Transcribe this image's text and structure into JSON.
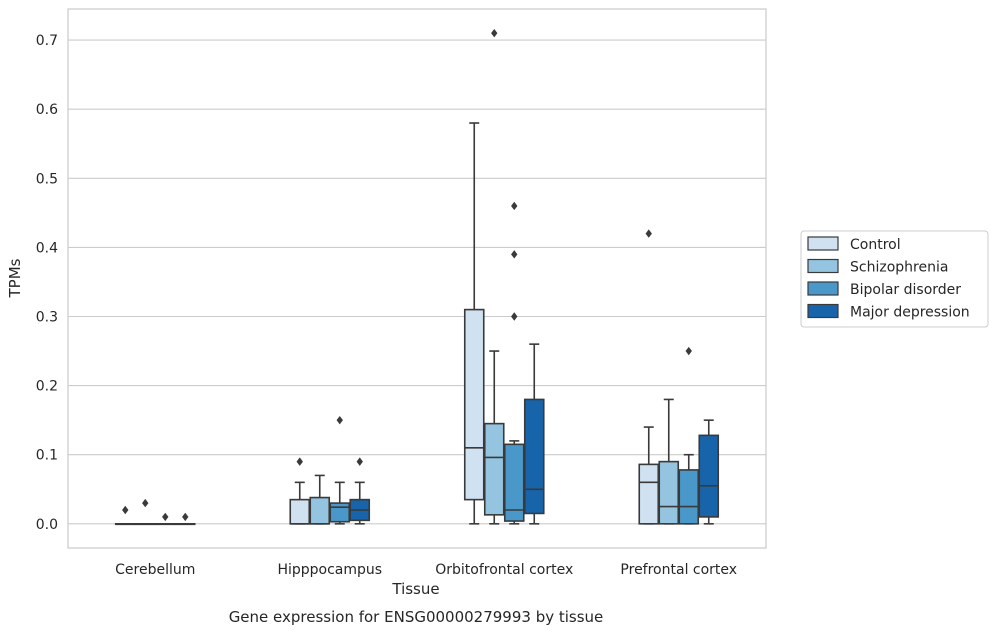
{
  "caption": "Gene expression for ENSG00000279993 by tissue",
  "chart_data": {
    "type": "boxplot",
    "title": "",
    "xlabel": "Tissue",
    "ylabel": "TPMs",
    "ylim": [
      -0.035,
      0.745
    ],
    "yticks": [
      0.0,
      0.1,
      0.2,
      0.3,
      0.4,
      0.5,
      0.6,
      0.7
    ],
    "ytick_labels": [
      "0.0",
      "0.1",
      "0.2",
      "0.3",
      "0.4",
      "0.5",
      "0.6",
      "0.7"
    ],
    "grid": "horizontal",
    "legend_position": "right",
    "categories": [
      "Cerebellum",
      "Hipppocampus",
      "Orbitofrontal cortex",
      "Prefrontal cortex"
    ],
    "series": [
      {
        "name": "Control",
        "color": "#d0e1f2",
        "boxes": [
          {
            "min": 0,
            "q1": 0,
            "median": 0,
            "q3": 0,
            "max": 0,
            "outliers": [
              0.02
            ]
          },
          {
            "min": 0,
            "q1": 0,
            "median": 0,
            "q3": 0.035,
            "max": 0.06,
            "outliers": [
              0.09
            ]
          },
          {
            "min": 0,
            "q1": 0.035,
            "median": 0.11,
            "q3": 0.31,
            "max": 0.58,
            "outliers": []
          },
          {
            "min": 0,
            "q1": 0,
            "median": 0.06,
            "q3": 0.086,
            "max": 0.14,
            "outliers": [
              0.42
            ]
          }
        ]
      },
      {
        "name": "Schizophrenia",
        "color": "#94c4df",
        "boxes": [
          {
            "min": 0,
            "q1": 0,
            "median": 0,
            "q3": 0,
            "max": 0,
            "outliers": [
              0.03
            ]
          },
          {
            "min": 0,
            "q1": 0,
            "median": 0,
            "q3": 0.038,
            "max": 0.07,
            "outliers": []
          },
          {
            "min": 0,
            "q1": 0.013,
            "median": 0.096,
            "q3": 0.145,
            "max": 0.25,
            "outliers": [
              0.71
            ]
          },
          {
            "min": 0,
            "q1": 0,
            "median": 0.025,
            "q3": 0.09,
            "max": 0.18,
            "outliers": []
          }
        ]
      },
      {
        "name": "Bipolar disorder",
        "color": "#4a98c9",
        "boxes": [
          {
            "min": 0,
            "q1": 0,
            "median": 0,
            "q3": 0,
            "max": 0,
            "outliers": [
              0.01
            ]
          },
          {
            "min": 0,
            "q1": 0.003,
            "median": 0.024,
            "q3": 0.03,
            "max": 0.06,
            "outliers": [
              0.15
            ]
          },
          {
            "min": 0,
            "q1": 0.004,
            "median": 0.02,
            "q3": 0.115,
            "max": 0.12,
            "outliers": [
              0.3,
              0.39,
              0.46
            ]
          },
          {
            "min": 0,
            "q1": 0,
            "median": 0.025,
            "q3": 0.078,
            "max": 0.1,
            "outliers": [
              0.25
            ]
          }
        ]
      },
      {
        "name": "Major depression",
        "color": "#1764ab",
        "boxes": [
          {
            "min": 0,
            "q1": 0,
            "median": 0,
            "q3": 0,
            "max": 0,
            "outliers": [
              0.01
            ]
          },
          {
            "min": 0,
            "q1": 0.005,
            "median": 0.02,
            "q3": 0.035,
            "max": 0.06,
            "outliers": [
              0.09
            ]
          },
          {
            "min": 0,
            "q1": 0.015,
            "median": 0.05,
            "q3": 0.18,
            "max": 0.26,
            "outliers": []
          },
          {
            "min": 0,
            "q1": 0.01,
            "median": 0.055,
            "q3": 0.128,
            "max": 0.15,
            "outliers": []
          }
        ]
      }
    ]
  }
}
